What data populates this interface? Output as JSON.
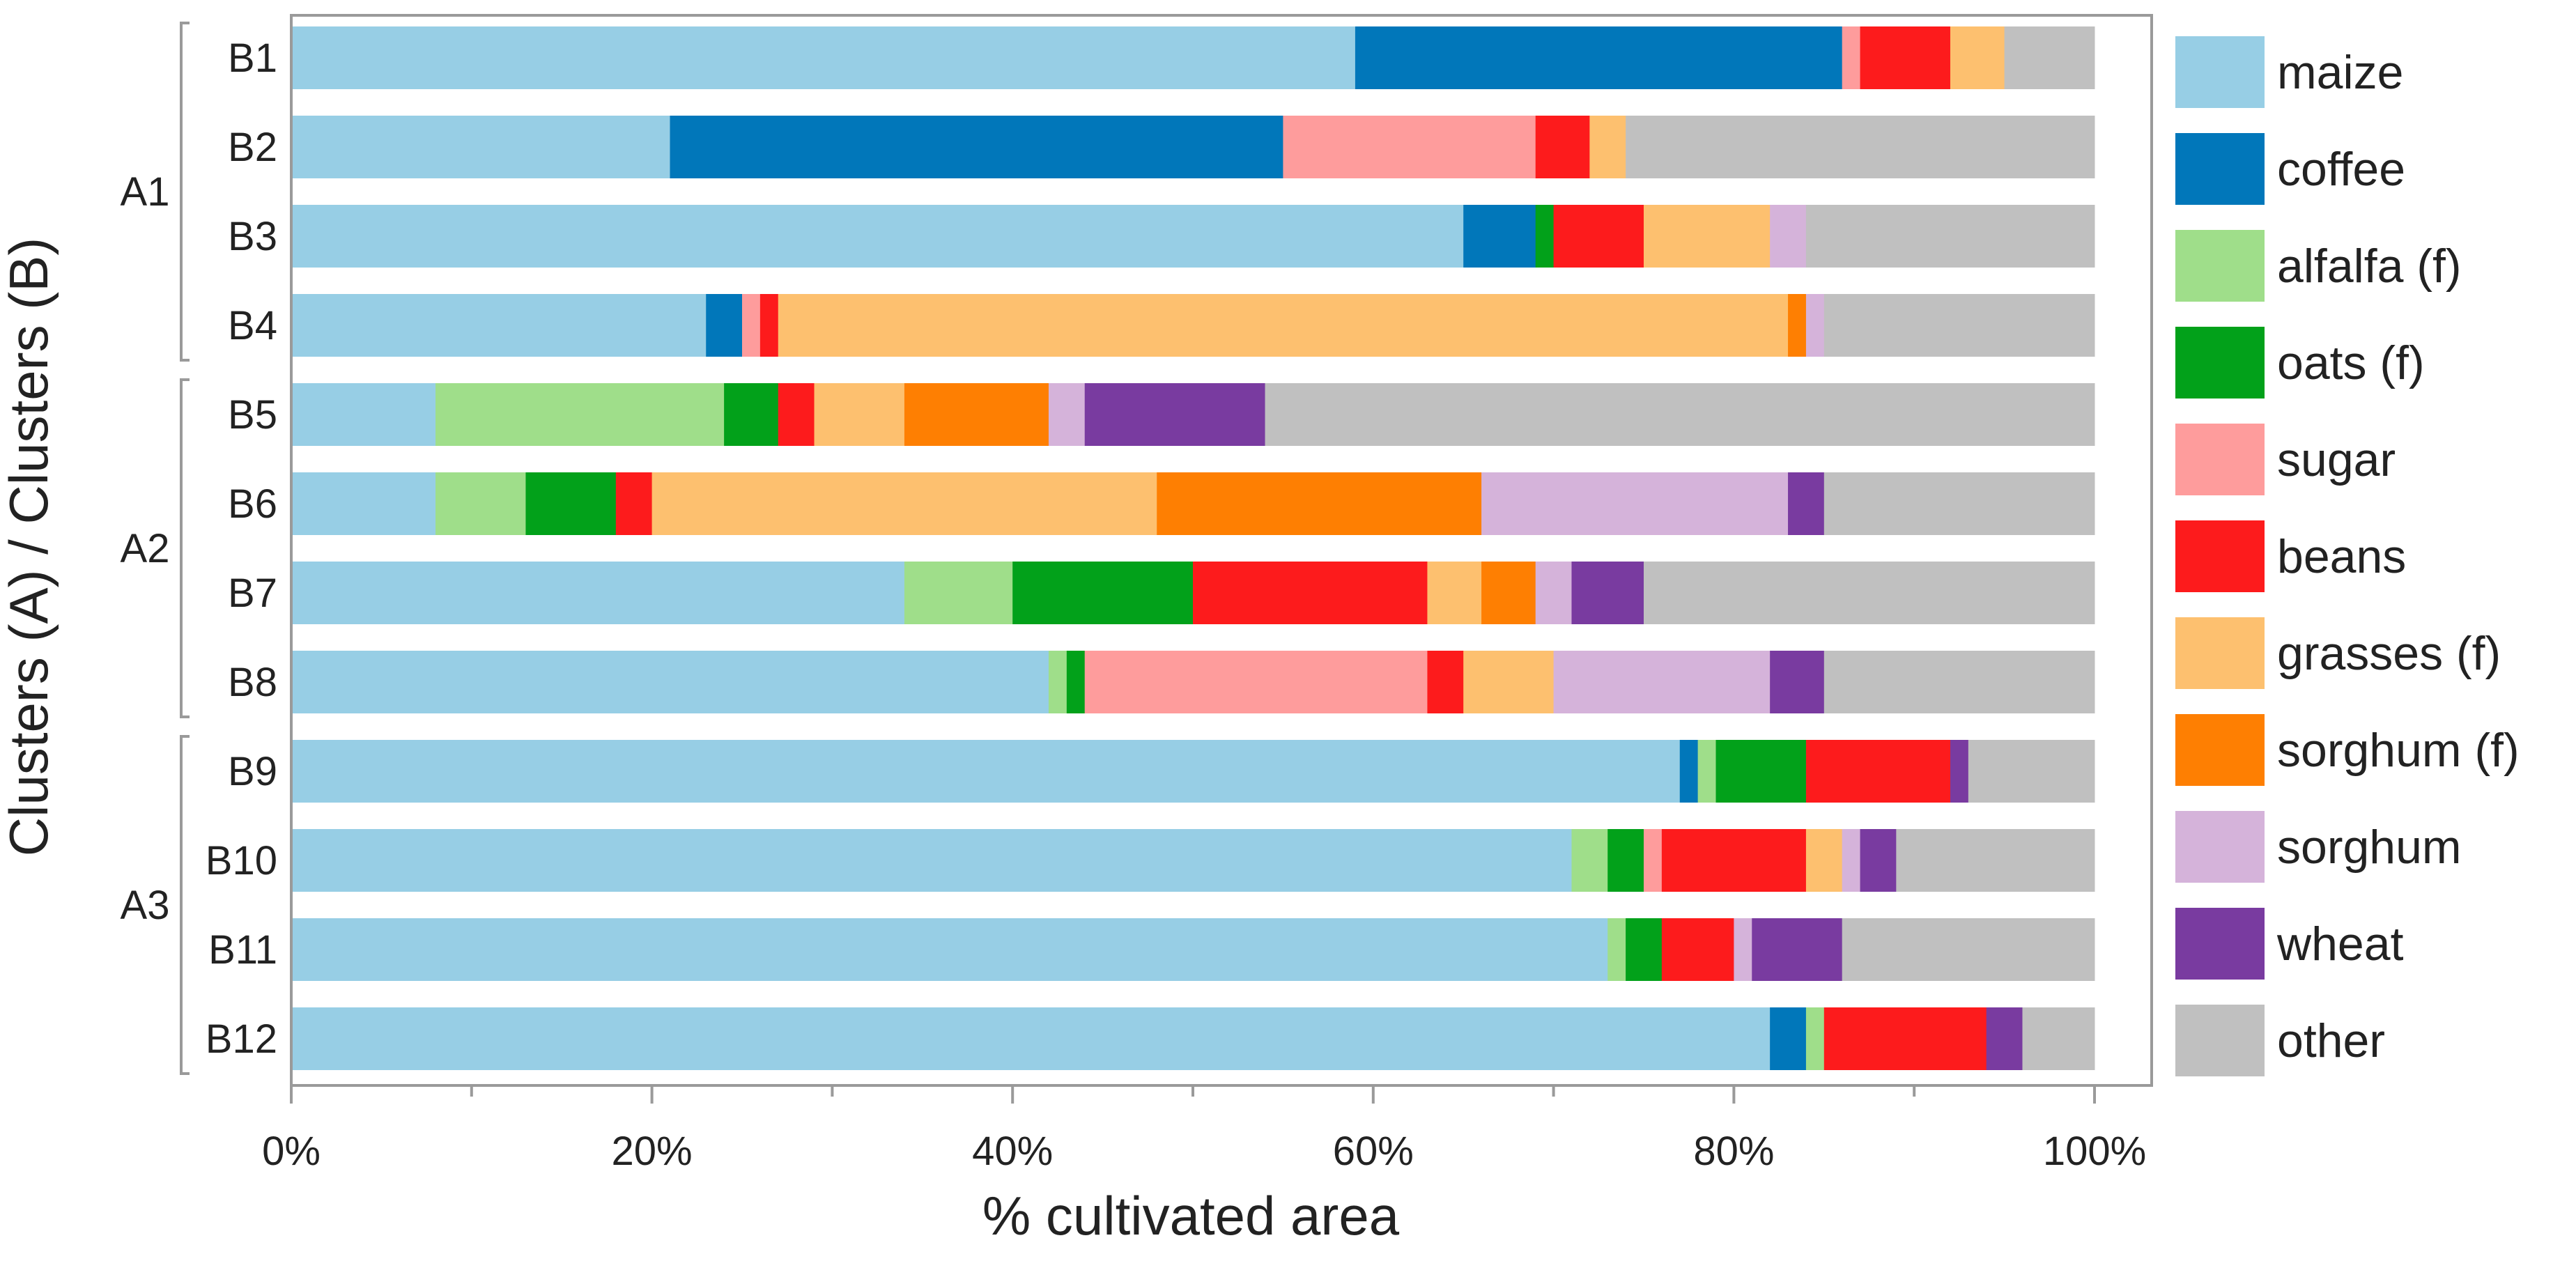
{
  "chart_data": {
    "type": "bar",
    "orientation": "horizontal",
    "stacked": true,
    "xlabel": "% cultivated area",
    "ylabel": "Clusters (A) / Clusters (B)",
    "xlim": [
      0,
      100
    ],
    "x_ticks": [
      "0%",
      "20%",
      "40%",
      "60%",
      "80%",
      "100%"
    ],
    "grid": false,
    "legend_position": "right",
    "categories": [
      "B1",
      "B2",
      "B3",
      "B4",
      "B5",
      "B6",
      "B7",
      "B8",
      "B9",
      "B10",
      "B11",
      "B12"
    ],
    "groups": [
      {
        "label": "A1",
        "members": [
          "B1",
          "B2",
          "B3",
          "B4"
        ]
      },
      {
        "label": "A2",
        "members": [
          "B5",
          "B6",
          "B7",
          "B8"
        ]
      },
      {
        "label": "A3",
        "members": [
          "B9",
          "B10",
          "B11",
          "B12"
        ]
      }
    ],
    "series": [
      {
        "name": "maize",
        "color": "#97CEE5",
        "values": [
          59,
          21,
          65,
          23,
          8,
          8,
          34,
          42,
          77,
          71,
          73,
          82
        ]
      },
      {
        "name": "coffee",
        "color": "#0177BA",
        "values": [
          27,
          34,
          4,
          2,
          0,
          0,
          0,
          0,
          1,
          0,
          0,
          2
        ]
      },
      {
        "name": "alfalfa (f)",
        "color": "#9FDE8A",
        "values": [
          0,
          0,
          0,
          0,
          16,
          5,
          6,
          1,
          1,
          2,
          1,
          1
        ]
      },
      {
        "name": "oats (f)",
        "color": "#02A11A",
        "values": [
          0,
          0,
          1,
          0,
          3,
          5,
          10,
          1,
          5,
          2,
          2,
          0
        ]
      },
      {
        "name": "sugar",
        "color": "#FE9C9C",
        "values": [
          1,
          14,
          0,
          1,
          0,
          0,
          0,
          19,
          0,
          1,
          0,
          0
        ]
      },
      {
        "name": "beans",
        "color": "#FD1B1C",
        "values": [
          5,
          3,
          5,
          1,
          2,
          2,
          13,
          2,
          8,
          8,
          4,
          9
        ]
      },
      {
        "name": "grasses (f)",
        "color": "#FDC06F",
        "values": [
          3,
          2,
          7,
          56,
          5,
          28,
          3,
          5,
          0,
          2,
          0,
          0
        ]
      },
      {
        "name": "sorghum (f)",
        "color": "#FE7F02",
        "values": [
          0,
          0,
          0,
          1,
          8,
          18,
          3,
          0,
          0,
          0,
          0,
          0
        ]
      },
      {
        "name": "sorghum",
        "color": "#D5B3DA",
        "values": [
          0,
          0,
          2,
          1,
          2,
          17,
          2,
          12,
          0,
          1,
          1,
          0
        ]
      },
      {
        "name": "wheat",
        "color": "#793BA0",
        "values": [
          0,
          0,
          0,
          0,
          10,
          2,
          4,
          3,
          1,
          2,
          5,
          2
        ]
      },
      {
        "name": "other",
        "color": "#C0C0C0",
        "values": [
          5,
          26,
          16,
          15,
          46,
          15,
          25,
          15,
          7,
          11,
          14,
          4
        ]
      }
    ]
  }
}
